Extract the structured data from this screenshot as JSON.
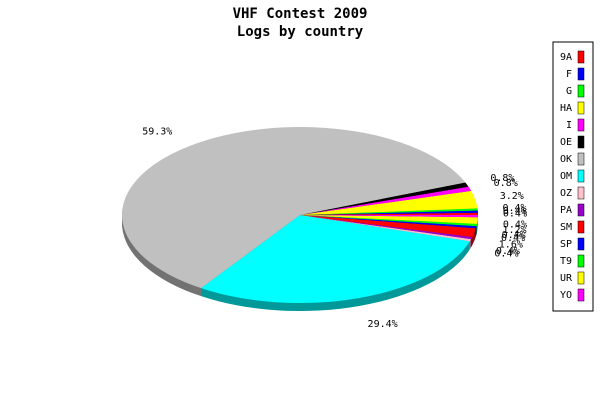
{
  "chart_data": {
    "type": "pie",
    "title": "VHF Contest 2009",
    "subtitle": "Logs by country",
    "categories": [
      "9A",
      "F",
      "G",
      "HA",
      "I",
      "OE",
      "OK",
      "OM",
      "OZ",
      "PA",
      "SM",
      "SP",
      "T9",
      "UR",
      "YO"
    ],
    "values": [
      0.4,
      0.4,
      0.4,
      3.2,
      0.8,
      0.8,
      59.3,
      29.4,
      0.4,
      0.4,
      1.6,
      0.4,
      0.4,
      1.2,
      0.4
    ],
    "value_labels": [
      "0.4%",
      "0.4%",
      "0.4%",
      "3.2%",
      "0.8%",
      "0.8%",
      "59.3%",
      "29.4%",
      "0.4%",
      "0.4%",
      "1.6%",
      "0.4%",
      "0.4%",
      "1.2%",
      "0.4%"
    ],
    "colors": [
      "#ff0000",
      "#0000ff",
      "#00ff00",
      "#ffff00",
      "#ff00ff",
      "#000000",
      "#c0c0c0",
      "#00ffff",
      "#ffc0cb",
      "#9900cc",
      "#ff0000",
      "#0000ff",
      "#00ff00",
      "#ffff00",
      "#ff00ff"
    ],
    "legend": "right"
  }
}
